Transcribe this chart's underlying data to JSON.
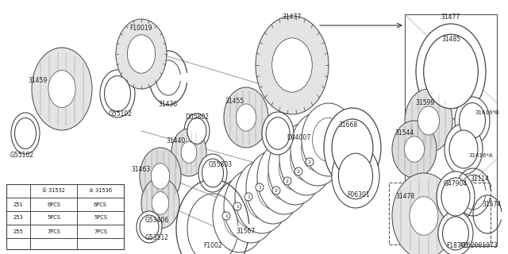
{
  "bg_color": "#ffffff",
  "diagram_id": "A162001073",
  "line_color": "#555555",
  "table": {
    "col_headers": [
      "",
      "① 31532",
      "② 31536"
    ],
    "rows": [
      [
        "251",
        "6PCS",
        "6PCS"
      ],
      [
        "253",
        "5PCS",
        "5PCS"
      ],
      [
        "255",
        "7PCS",
        "7PCS"
      ]
    ]
  }
}
